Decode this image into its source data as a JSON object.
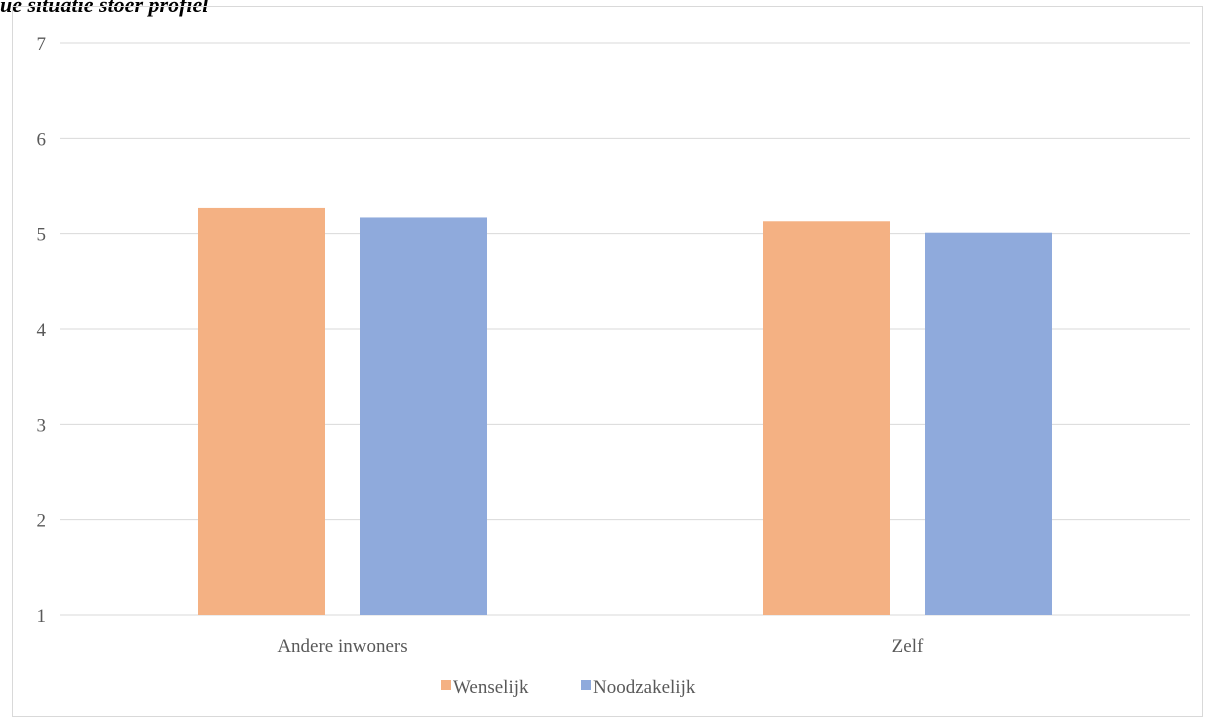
{
  "chart_data": {
    "type": "bar",
    "title": "ue situatie stoer profiel",
    "categories": [
      "Andere inwoners",
      "Zelf"
    ],
    "series": [
      {
        "name": "Wenselijk",
        "values": [
          5.27,
          5.13
        ],
        "color": "#f4b183"
      },
      {
        "name": "Noodzakelijk",
        "values": [
          5.17,
          5.01
        ],
        "color": "#8faadc"
      }
    ],
    "xlabel": "",
    "ylabel": "",
    "ylim": [
      1,
      7
    ],
    "yticks": [
      1,
      2,
      3,
      4,
      5,
      6,
      7
    ],
    "grid": true,
    "legend": "bottom"
  }
}
